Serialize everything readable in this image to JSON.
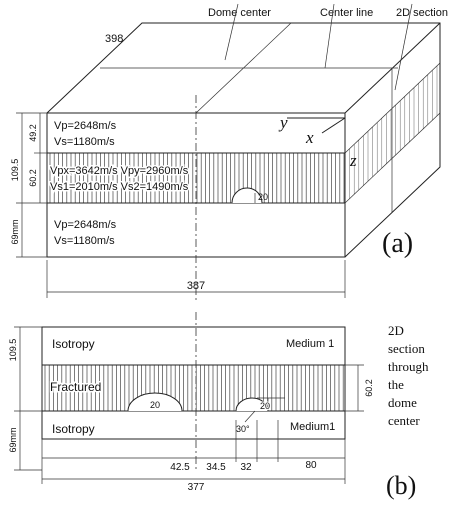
{
  "panel_a": {
    "callouts": [
      "Dome center",
      "Center line",
      "2D section"
    ],
    "top_dim": "398",
    "upper_layer": [
      "Vp=2648m/s",
      "Vs=1180m/s"
    ],
    "fractured_layer": [
      "Vpx=3642m/s Vpy=2960m/s",
      "Vs1=2010m/s Vs2=1490m/s"
    ],
    "lower_layer": [
      "Vp=2648m/s",
      "Vs=1180m/s"
    ],
    "dims": [
      "49.2",
      "109.5",
      "60.2",
      "69mm"
    ],
    "dome_height": "20",
    "axes": [
      "y",
      "x",
      "z"
    ],
    "bottom_dim": "387",
    "label": "(a)"
  },
  "panel_b": {
    "layers": [
      "Isotropy",
      "Fractured",
      "Isotropy"
    ],
    "media": [
      "Medium 1",
      "Medium1"
    ],
    "dims_left": [
      "109.5",
      "69mm"
    ],
    "dim_right": "60.2",
    "dome_heights": [
      "20",
      "20"
    ],
    "angle": "30°",
    "spacings": [
      "42.5",
      "34.5",
      "32",
      "80"
    ],
    "total": "377",
    "note": [
      "2D",
      "section",
      "through",
      "the",
      "dome",
      "center"
    ],
    "label": "(b)"
  }
}
